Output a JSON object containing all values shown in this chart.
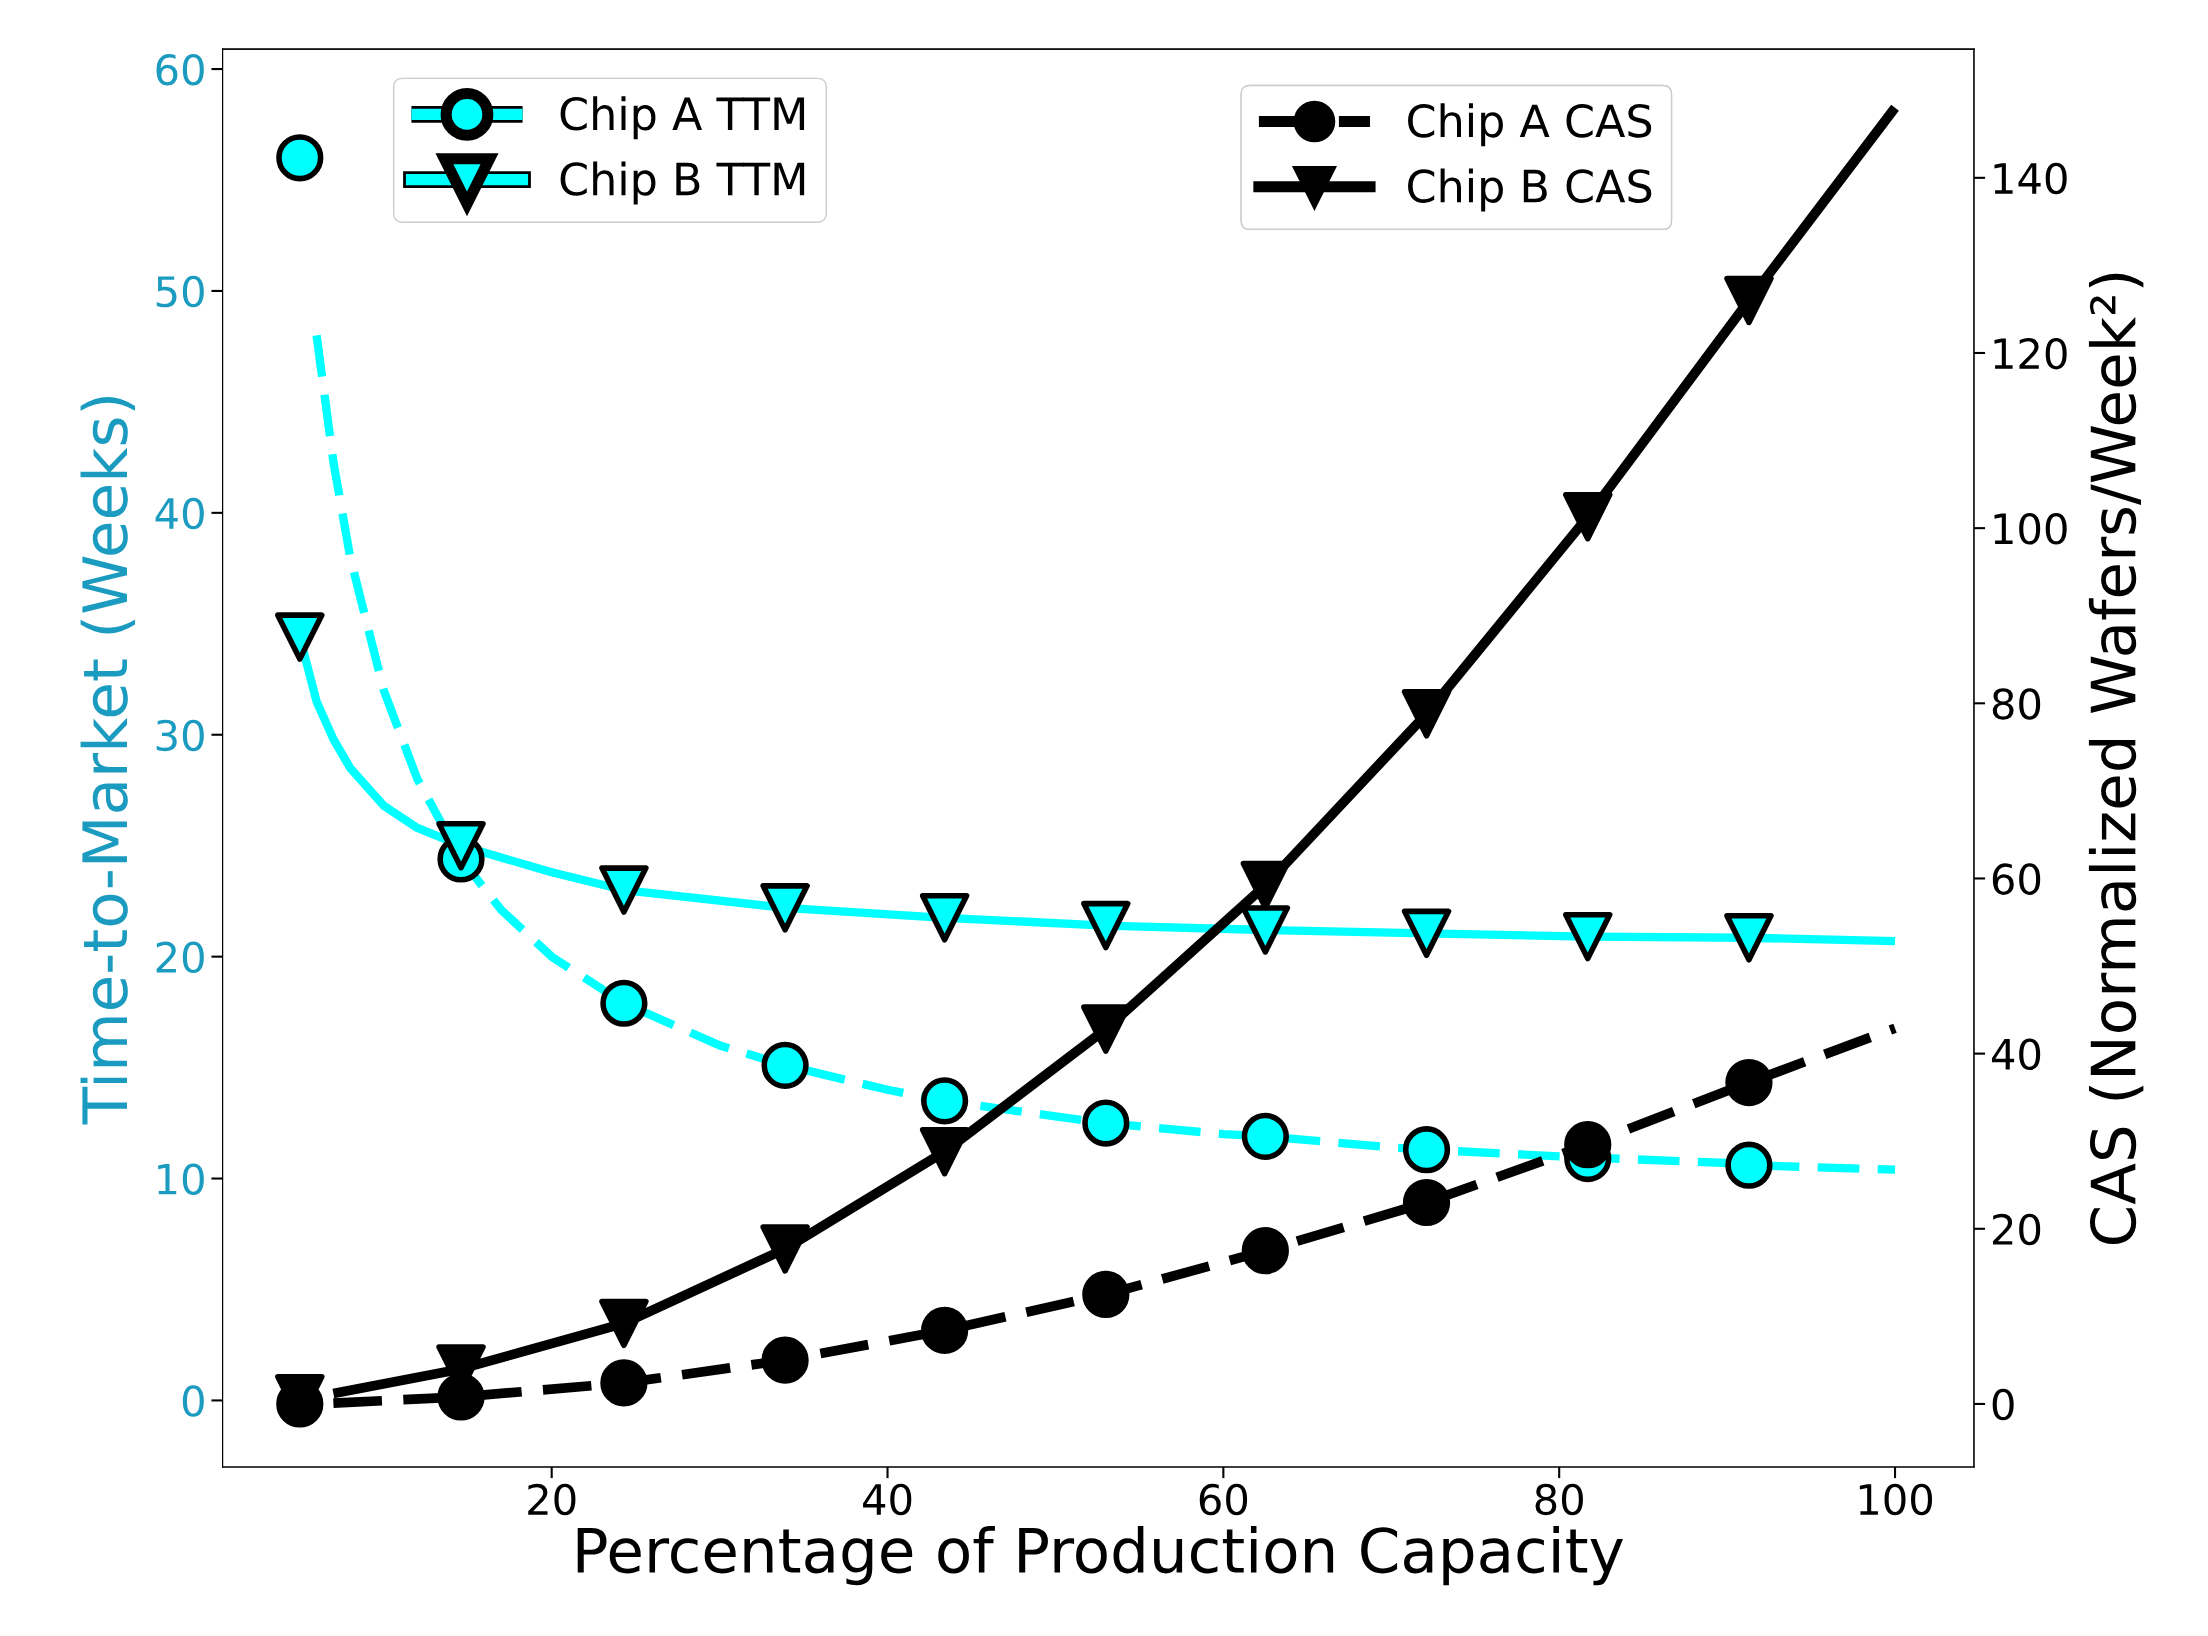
{
  "chart_data": {
    "type": "line",
    "xlabel": "Percentage of Production Capacity",
    "ylabel": "Time-to-Market (Weeks)",
    "y2label": "CAS (Normalized Wafers/Week²)",
    "xlim": [
      0.4,
      104.7
    ],
    "xticks": [
      20,
      40,
      60,
      80,
      100
    ],
    "ylim": [
      -3.0,
      60.9
    ],
    "yticks": [
      0,
      10,
      20,
      30,
      40,
      50,
      60
    ],
    "y2lim": [
      -7.2,
      154.7
    ],
    "y2ticks": [
      0,
      20,
      40,
      60,
      80,
      100,
      120,
      140
    ],
    "grid": false,
    "legend": "top",
    "series": [
      {
        "color": "#00ffff",
        "line_style": "dashed",
        "x": [
          6,
          7,
          8,
          10,
          12,
          14.6,
          17,
          20,
          24.3,
          30,
          33.9,
          40,
          43.4,
          50,
          53,
          60,
          62.5,
          70,
          72.1,
          80,
          90,
          91.3,
          100
        ],
        "values": [
          48,
          42.3,
          38,
          32,
          28,
          24.4,
          22.1,
          20,
          17.9,
          16,
          15.1,
          14,
          13.5,
          12.8,
          12.5,
          12,
          11.9,
          11.4,
          11.3,
          11,
          10.7,
          10.6,
          10.4
        ]
      },
      {
        "type": "scatter",
        "name": "Chip A TTM",
        "color": "#00ffff",
        "marker": "circle",
        "line_style": "dashed",
        "x": [
          5,
          14.6,
          24.3,
          33.9,
          43.4,
          53,
          62.5,
          72.1,
          81.7,
          91.3
        ],
        "values": [
          56,
          24.4,
          17.9,
          15.1,
          13.5,
          12.5,
          11.9,
          11.3,
          10.9,
          10.6
        ]
      },
      {
        "color": "#00ffff",
        "line_style": "solid",
        "x": [
          5,
          6,
          7,
          8,
          10,
          12,
          14.6,
          20,
          24.3,
          33.9,
          43.4,
          53,
          62.5,
          72.1,
          81.7,
          91.3,
          100
        ],
        "values": [
          34.4,
          31.5,
          29.8,
          28.5,
          26.8,
          25.8,
          25.0,
          23.8,
          23.0,
          22.2,
          21.75,
          21.4,
          21.2,
          21.05,
          20.9,
          20.85,
          20.7
        ]
      },
      {
        "type": "scatter",
        "name": "Chip B TTM",
        "color": "#00ffff",
        "marker": "triangle",
        "line_style": "solid",
        "x": [
          5,
          14.6,
          24.3,
          33.9,
          43.4,
          53,
          62.5,
          72.1,
          81.7,
          91.3
        ],
        "values": [
          34.4,
          25.0,
          23.0,
          22.2,
          21.75,
          21.4,
          21.2,
          21.05,
          20.9,
          20.85
        ]
      },
      {
        "color": "#000000",
        "line_style": "dashed",
        "axis": "y2",
        "x": [
          7,
          14.6,
          24.3,
          33.9,
          43.4,
          53,
          62.5,
          72.1,
          81.7,
          91.3,
          100
        ],
        "values": [
          0.1,
          0.8,
          2.4,
          5,
          8.4,
          12.5,
          17.5,
          23,
          29.6,
          36.7,
          42.9
        ]
      },
      {
        "type": "scatter",
        "name": "Chip A CAS",
        "color": "#000000",
        "marker": "circle",
        "line_style": "dashed",
        "axis": "y2",
        "x": [
          5,
          14.6,
          24.3,
          33.9,
          43.4,
          53,
          62.5,
          72.1,
          81.7,
          91.3
        ],
        "values": [
          0,
          0.8,
          2.4,
          5,
          8.4,
          12.5,
          17.5,
          23,
          29.6,
          36.7
        ]
      },
      {
        "color": "#000000",
        "line_style": "solid",
        "axis": "y2",
        "x": [
          7,
          14.6,
          24.3,
          33.9,
          43.4,
          53,
          62.5,
          72.1,
          81.7,
          91.3,
          100
        ],
        "values": [
          1.2,
          4,
          9.2,
          17.7,
          28.8,
          42.8,
          59.2,
          78.8,
          101.3,
          126,
          148
        ]
      },
      {
        "type": "scatter",
        "name": "Chip B CAS",
        "color": "#000000",
        "marker": "triangle",
        "line_style": "solid",
        "axis": "y2",
        "x": [
          5,
          14.6,
          24.3,
          33.9,
          43.4,
          53,
          62.5,
          72.1,
          81.7,
          91.3
        ],
        "values": [
          0.6,
          4,
          9.2,
          17.7,
          28.8,
          42.8,
          59.2,
          78.8,
          101.3,
          126
        ]
      }
    ]
  }
}
